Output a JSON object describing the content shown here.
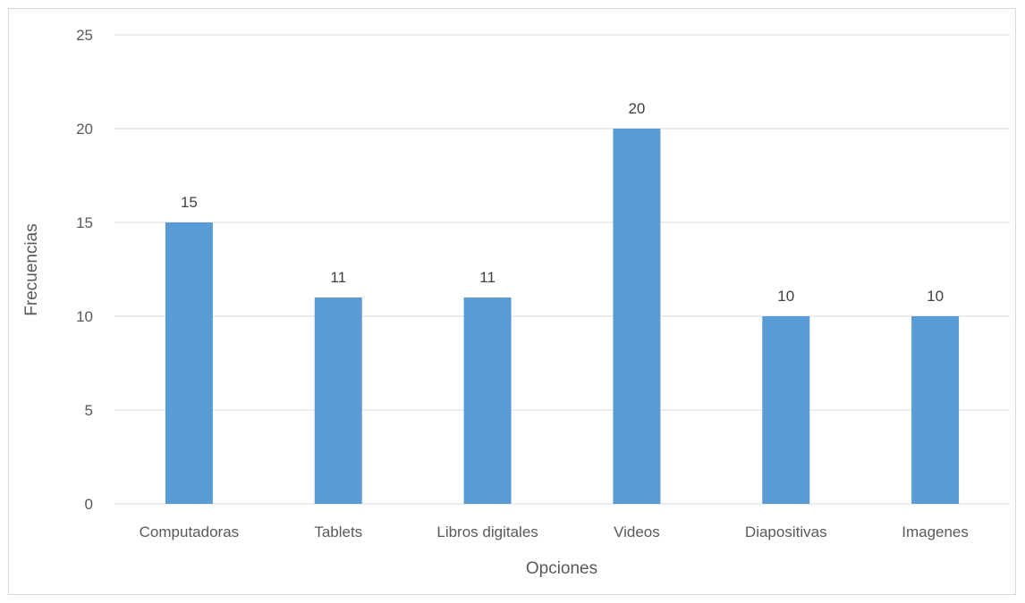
{
  "chart_data": {
    "type": "bar",
    "categories": [
      "Computadoras",
      "Tablets",
      "Libros digitales",
      "Videos",
      "Diapositivas",
      "Imagenes"
    ],
    "values": [
      15,
      11,
      11,
      20,
      10,
      10
    ],
    "xlabel": "Opciones",
    "ylabel": "Frecuencias",
    "ylim": [
      0,
      25
    ],
    "yticks": [
      "0",
      "5",
      "10",
      "15",
      "20",
      "25"
    ],
    "grid": true,
    "bar_color": "#5b9bd5",
    "grid_color": "#d9d9d9"
  }
}
